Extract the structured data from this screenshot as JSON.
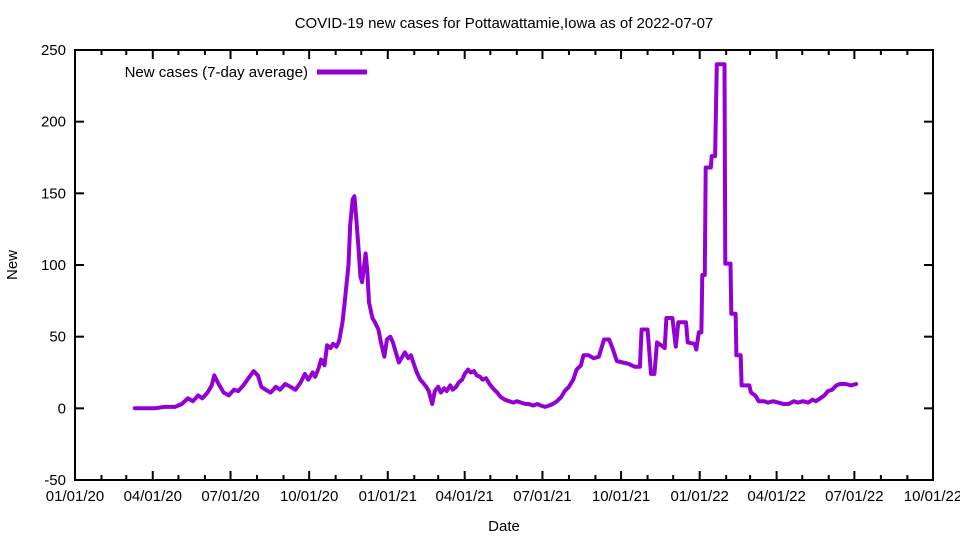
{
  "page": {
    "background": "#ffffff"
  },
  "chart_data": {
    "type": "line",
    "title": "COVID-19 new cases for Pottawattamie,Iowa as of 2022-07-07",
    "xlabel": "Date",
    "ylabel": "New",
    "grid": false,
    "legend_position": "top-left-inside",
    "axis_color": "#000000",
    "x_axis": {
      "label": "Date",
      "range": [
        "2020-01-01",
        "2022-10-01"
      ],
      "minor_ticks": "monthly",
      "major_ticks": [
        {
          "date": "2020-01-01",
          "label": "01/01/20"
        },
        {
          "date": "2020-04-01",
          "label": "04/01/20"
        },
        {
          "date": "2020-07-01",
          "label": "07/01/20"
        },
        {
          "date": "2020-10-01",
          "label": "10/01/20"
        },
        {
          "date": "2021-01-01",
          "label": "01/01/21"
        },
        {
          "date": "2021-04-01",
          "label": "04/01/21"
        },
        {
          "date": "2021-07-01",
          "label": "07/01/21"
        },
        {
          "date": "2021-10-01",
          "label": "10/01/21"
        },
        {
          "date": "2022-01-01",
          "label": "01/01/22"
        },
        {
          "date": "2022-04-01",
          "label": "04/01/22"
        },
        {
          "date": "2022-07-01",
          "label": "07/01/22"
        },
        {
          "date": "2022-10-01",
          "label": "10/01/22"
        }
      ]
    },
    "y_axis": {
      "label": "New",
      "range": [
        -50,
        250
      ],
      "ticks": [
        -50,
        0,
        50,
        100,
        150,
        200,
        250
      ]
    },
    "series": [
      {
        "name": "New cases (7-day average)",
        "color": "#9400d3",
        "points": [
          [
            "2020-03-11",
            0
          ],
          [
            "2020-03-23",
            0
          ],
          [
            "2020-04-03",
            0
          ],
          [
            "2020-04-15",
            1
          ],
          [
            "2020-04-27",
            1
          ],
          [
            "2020-05-05",
            3
          ],
          [
            "2020-05-12",
            7
          ],
          [
            "2020-05-18",
            5
          ],
          [
            "2020-05-24",
            9
          ],
          [
            "2020-05-29",
            7
          ],
          [
            "2020-06-04",
            11
          ],
          [
            "2020-06-09",
            16
          ],
          [
            "2020-06-12",
            23
          ],
          [
            "2020-06-17",
            17
          ],
          [
            "2020-06-23",
            11
          ],
          [
            "2020-06-29",
            9
          ],
          [
            "2020-07-05",
            13
          ],
          [
            "2020-07-10",
            12
          ],
          [
            "2020-07-16",
            16
          ],
          [
            "2020-07-22",
            21
          ],
          [
            "2020-07-28",
            26
          ],
          [
            "2020-08-02",
            23
          ],
          [
            "2020-08-06",
            15
          ],
          [
            "2020-08-11",
            13
          ],
          [
            "2020-08-17",
            11
          ],
          [
            "2020-08-23",
            15
          ],
          [
            "2020-08-28",
            13
          ],
          [
            "2020-09-03",
            17
          ],
          [
            "2020-09-09",
            15
          ],
          [
            "2020-09-15",
            13
          ],
          [
            "2020-09-21",
            18
          ],
          [
            "2020-09-26",
            24
          ],
          [
            "2020-09-30",
            20
          ],
          [
            "2020-10-05",
            25
          ],
          [
            "2020-10-08",
            22
          ],
          [
            "2020-10-12",
            28
          ],
          [
            "2020-10-15",
            34
          ],
          [
            "2020-10-19",
            30
          ],
          [
            "2020-10-22",
            44
          ],
          [
            "2020-10-26",
            42
          ],
          [
            "2020-10-29",
            45
          ],
          [
            "2020-11-02",
            43
          ],
          [
            "2020-11-05",
            47
          ],
          [
            "2020-11-09",
            60
          ],
          [
            "2020-11-12",
            76
          ],
          [
            "2020-11-16",
            100
          ],
          [
            "2020-11-18",
            128
          ],
          [
            "2020-11-21",
            146
          ],
          [
            "2020-11-23",
            148
          ],
          [
            "2020-11-25",
            133
          ],
          [
            "2020-11-28",
            110
          ],
          [
            "2020-11-30",
            92
          ],
          [
            "2020-12-02",
            88
          ],
          [
            "2020-12-06",
            108
          ],
          [
            "2020-12-08",
            96
          ],
          [
            "2020-12-10",
            74
          ],
          [
            "2020-12-14",
            63
          ],
          [
            "2020-12-17",
            60
          ],
          [
            "2020-12-21",
            55
          ],
          [
            "2020-12-24",
            46
          ],
          [
            "2020-12-28",
            36
          ],
          [
            "2020-12-31",
            48
          ],
          [
            "2021-01-04",
            50
          ],
          [
            "2021-01-07",
            46
          ],
          [
            "2021-01-11",
            38
          ],
          [
            "2021-01-14",
            32
          ],
          [
            "2021-01-18",
            36
          ],
          [
            "2021-01-21",
            39
          ],
          [
            "2021-01-25",
            35
          ],
          [
            "2021-01-28",
            37
          ],
          [
            "2021-02-01",
            30
          ],
          [
            "2021-02-04",
            25
          ],
          [
            "2021-02-08",
            20
          ],
          [
            "2021-02-11",
            18
          ],
          [
            "2021-02-15",
            15
          ],
          [
            "2021-02-18",
            12
          ],
          [
            "2021-02-22",
            3
          ],
          [
            "2021-02-25",
            12
          ],
          [
            "2021-03-01",
            15
          ],
          [
            "2021-03-04",
            11
          ],
          [
            "2021-03-08",
            14
          ],
          [
            "2021-03-11",
            12
          ],
          [
            "2021-03-15",
            16
          ],
          [
            "2021-03-18",
            13
          ],
          [
            "2021-03-22",
            15
          ],
          [
            "2021-03-25",
            18
          ],
          [
            "2021-03-29",
            20
          ],
          [
            "2021-04-01",
            24
          ],
          [
            "2021-04-05",
            27
          ],
          [
            "2021-04-08",
            25
          ],
          [
            "2021-04-12",
            26
          ],
          [
            "2021-04-15",
            23
          ],
          [
            "2021-04-19",
            22
          ],
          [
            "2021-04-22",
            20
          ],
          [
            "2021-04-26",
            21
          ],
          [
            "2021-04-30",
            17
          ],
          [
            "2021-05-04",
            14
          ],
          [
            "2021-05-09",
            11
          ],
          [
            "2021-05-13",
            8
          ],
          [
            "2021-05-18",
            6
          ],
          [
            "2021-05-23",
            5
          ],
          [
            "2021-05-28",
            4
          ],
          [
            "2021-06-01",
            5
          ],
          [
            "2021-06-06",
            4
          ],
          [
            "2021-06-11",
            3
          ],
          [
            "2021-06-15",
            3
          ],
          [
            "2021-06-20",
            2
          ],
          [
            "2021-06-25",
            3
          ],
          [
            "2021-06-29",
            2
          ],
          [
            "2021-07-04",
            1
          ],
          [
            "2021-07-09",
            2
          ],
          [
            "2021-07-13",
            3
          ],
          [
            "2021-07-18",
            5
          ],
          [
            "2021-07-23",
            8
          ],
          [
            "2021-07-27",
            12
          ],
          [
            "2021-08-01",
            15
          ],
          [
            "2021-08-06",
            20
          ],
          [
            "2021-08-10",
            27
          ],
          [
            "2021-08-15",
            30
          ],
          [
            "2021-08-18",
            37
          ],
          [
            "2021-08-24",
            37
          ],
          [
            "2021-08-30",
            35
          ],
          [
            "2021-09-05",
            36
          ],
          [
            "2021-09-11",
            48
          ],
          [
            "2021-09-17",
            48
          ],
          [
            "2021-09-21",
            42
          ],
          [
            "2021-09-26",
            33
          ],
          [
            "2021-10-03",
            32
          ],
          [
            "2021-10-10",
            31
          ],
          [
            "2021-10-17",
            29
          ],
          [
            "2021-10-23",
            29
          ],
          [
            "2021-10-25",
            55
          ],
          [
            "2021-11-01",
            55
          ],
          [
            "2021-11-05",
            24
          ],
          [
            "2021-11-09",
            24
          ],
          [
            "2021-11-12",
            46
          ],
          [
            "2021-11-17",
            44
          ],
          [
            "2021-11-21",
            42
          ],
          [
            "2021-11-23",
            63
          ],
          [
            "2021-11-30",
            63
          ],
          [
            "2021-12-04",
            43
          ],
          [
            "2021-12-07",
            60
          ],
          [
            "2021-12-16",
            60
          ],
          [
            "2021-12-18",
            46
          ],
          [
            "2021-12-26",
            45
          ],
          [
            "2021-12-28",
            41
          ],
          [
            "2021-12-31",
            53
          ],
          [
            "2022-01-03",
            53
          ],
          [
            "2022-01-04",
            93
          ],
          [
            "2022-01-07",
            93
          ],
          [
            "2022-01-08",
            168
          ],
          [
            "2022-01-14",
            168
          ],
          [
            "2022-01-15",
            176
          ],
          [
            "2022-01-19",
            176
          ],
          [
            "2022-01-21",
            240
          ],
          [
            "2022-01-30",
            240
          ],
          [
            "2022-01-31",
            101
          ],
          [
            "2022-02-06",
            101
          ],
          [
            "2022-02-07",
            66
          ],
          [
            "2022-02-12",
            66
          ],
          [
            "2022-02-13",
            37
          ],
          [
            "2022-02-18",
            37
          ],
          [
            "2022-02-19",
            16
          ],
          [
            "2022-02-28",
            16
          ],
          [
            "2022-03-02",
            11
          ],
          [
            "2022-03-07",
            9
          ],
          [
            "2022-03-11",
            5
          ],
          [
            "2022-03-17",
            5
          ],
          [
            "2022-03-22",
            4
          ],
          [
            "2022-03-28",
            5
          ],
          [
            "2022-04-03",
            4
          ],
          [
            "2022-04-09",
            3
          ],
          [
            "2022-04-15",
            3
          ],
          [
            "2022-04-21",
            5
          ],
          [
            "2022-04-26",
            4
          ],
          [
            "2022-05-02",
            5
          ],
          [
            "2022-05-08",
            4
          ],
          [
            "2022-05-13",
            6
          ],
          [
            "2022-05-17",
            5
          ],
          [
            "2022-05-22",
            7
          ],
          [
            "2022-05-27",
            9
          ],
          [
            "2022-05-31",
            12
          ],
          [
            "2022-06-05",
            13
          ],
          [
            "2022-06-10",
            16
          ],
          [
            "2022-06-14",
            17
          ],
          [
            "2022-06-21",
            17
          ],
          [
            "2022-06-27",
            16
          ],
          [
            "2022-07-03",
            17
          ]
        ]
      }
    ]
  }
}
